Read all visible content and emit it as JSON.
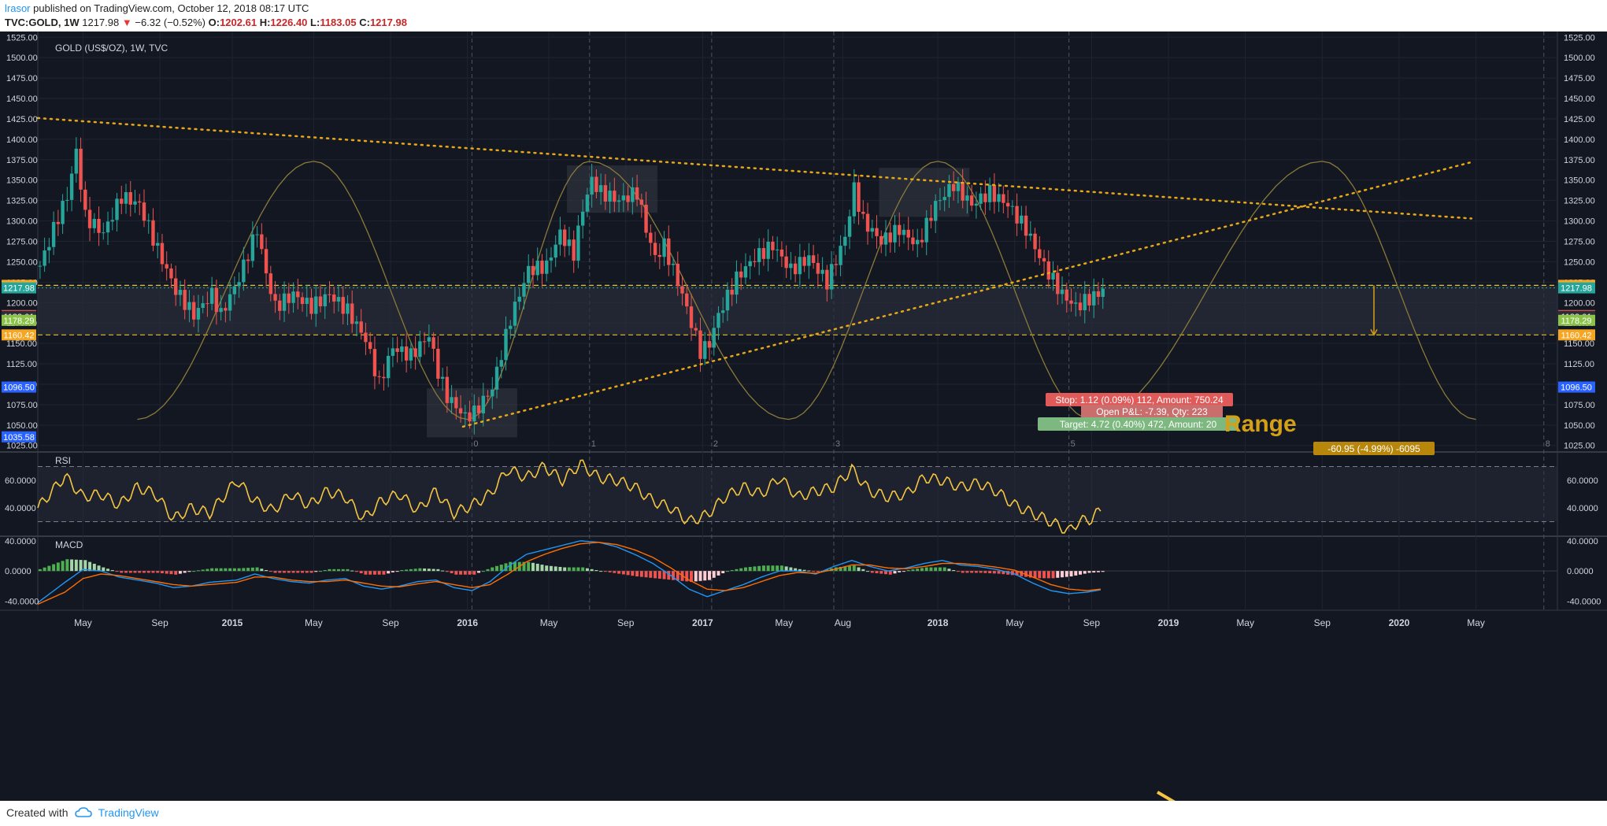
{
  "header": {
    "user": "lrasor",
    "published": "published on TradingView.com, October 12, 2018 08:17 UTC",
    "symbol": "TVC:GOLD, 1W",
    "last": "1217.98",
    "change": "−6.32 (−0.52%)",
    "o_label": "O:",
    "o_value": "1202.61",
    "h_label": "H:",
    "h_value": "1226.40",
    "l_label": "L:",
    "l_value": "1183.05",
    "c_label": "C:",
    "c_value": "1217.98"
  },
  "footer": {
    "created_with": "Created with",
    "brand": "TradingView"
  },
  "colors": {
    "bg": "#131722",
    "bull": "#26a69a",
    "bear": "#ef5350",
    "rsi": "#f4c542",
    "trend": "#e6a817",
    "cycle": "#8a7a3a",
    "macd": "#2196f3",
    "signal": "#ff6d00"
  },
  "chart_data": {
    "type": "candlestick",
    "title": "GOLD (US$/OZ), 1W, TVC",
    "price_axis": {
      "ticks": [
        "1525.00",
        "1500.00",
        "1475.00",
        "1450.00",
        "1425.00",
        "1400.00",
        "1375.00",
        "1350.00",
        "1325.00",
        "1300.00",
        "1275.00",
        "1250.00",
        "1225.00",
        "1200.00",
        "1175.00",
        "1150.00",
        "1125.00",
        "1100.00",
        "1075.00",
        "1050.00",
        "1025.00"
      ],
      "ylim": [
        1018,
        1532
      ]
    },
    "price_labels": [
      {
        "value": 1221.11,
        "text": "1221.11",
        "color": "#f5a623",
        "left": true,
        "right": true
      },
      {
        "value": 1217.98,
        "text": "1217.98",
        "color": "#26a69a",
        "left": true,
        "right": true
      },
      {
        "value": 1184.13,
        "text": "1184.13",
        "color": "#ef5350",
        "left": true,
        "right": true
      },
      {
        "value": 1183.01,
        "text": "1183.01",
        "color": "#2a2e39",
        "left": true,
        "right": true
      },
      {
        "value": 1178.29,
        "text": "1178.29",
        "color": "#8bc34a",
        "left": true,
        "right": true
      },
      {
        "value": 1160.42,
        "text": "1160.42",
        "color": "#f5a623",
        "left": true,
        "right": true
      },
      {
        "value": 1096.5,
        "text": "1096.50",
        "color": "#2962ff",
        "left": true,
        "right": true
      },
      {
        "value": 1035.58,
        "text": "1035.58",
        "color": "#2962ff",
        "left": true,
        "right": false
      }
    ],
    "time_axis": [
      {
        "w": 10,
        "label": "May",
        "bold": false
      },
      {
        "w": 27,
        "label": "Sep",
        "bold": false
      },
      {
        "w": 43,
        "label": "2015",
        "bold": true
      },
      {
        "w": 61,
        "label": "May",
        "bold": false
      },
      {
        "w": 78,
        "label": "Sep",
        "bold": false
      },
      {
        "w": 95,
        "label": "2016",
        "bold": true
      },
      {
        "w": 113,
        "label": "May",
        "bold": false
      },
      {
        "w": 130,
        "label": "Sep",
        "bold": false
      },
      {
        "w": 147,
        "label": "2017",
        "bold": true
      },
      {
        "w": 165,
        "label": "May",
        "bold": false
      },
      {
        "w": 178,
        "label": "Aug",
        "bold": false
      },
      {
        "w": 199,
        "label": "2018",
        "bold": true
      },
      {
        "w": 216,
        "label": "May",
        "bold": false
      },
      {
        "w": 233,
        "label": "Sep",
        "bold": false
      },
      {
        "w": 250,
        "label": "2019",
        "bold": true
      },
      {
        "w": 267,
        "label": "May",
        "bold": false
      },
      {
        "w": 284,
        "label": "Sep",
        "bold": false
      },
      {
        "w": 301,
        "label": "2020",
        "bold": true
      },
      {
        "w": 318,
        "label": "May",
        "bold": false
      }
    ],
    "cycle_markers": [
      {
        "w": 96,
        "label": "0"
      },
      {
        "w": 122,
        "label": "1"
      },
      {
        "w": 149,
        "label": "2"
      },
      {
        "w": 176,
        "label": "3"
      },
      {
        "w": 228,
        "label": "5"
      },
      {
        "w": 333,
        "label": "8"
      }
    ],
    "price_path": [
      [
        0,
        1245
      ],
      [
        4,
        1305
      ],
      [
        6,
        1330
      ],
      [
        8,
        1385
      ],
      [
        10,
        1305
      ],
      [
        14,
        1285
      ],
      [
        18,
        1330
      ],
      [
        22,
        1320
      ],
      [
        26,
        1265
      ],
      [
        30,
        1215
      ],
      [
        34,
        1185
      ],
      [
        38,
        1210
      ],
      [
        40,
        1185
      ],
      [
        44,
        1230
      ],
      [
        48,
        1290
      ],
      [
        50,
        1235
      ],
      [
        52,
        1195
      ],
      [
        56,
        1210
      ],
      [
        60,
        1195
      ],
      [
        64,
        1210
      ],
      [
        68,
        1190
      ],
      [
        72,
        1155
      ],
      [
        75,
        1100
      ],
      [
        78,
        1145
      ],
      [
        82,
        1135
      ],
      [
        86,
        1160
      ],
      [
        88,
        1115
      ],
      [
        90,
        1085
      ],
      [
        94,
        1060
      ],
      [
        96,
        1065
      ],
      [
        100,
        1095
      ],
      [
        104,
        1180
      ],
      [
        108,
        1240
      ],
      [
        112,
        1245
      ],
      [
        115,
        1285
      ],
      [
        118,
        1260
      ],
      [
        120,
        1315
      ],
      [
        122,
        1350
      ],
      [
        124,
        1335
      ],
      [
        128,
        1325
      ],
      [
        132,
        1335
      ],
      [
        134,
        1290
      ],
      [
        136,
        1255
      ],
      [
        138,
        1270
      ],
      [
        142,
        1210
      ],
      [
        146,
        1140
      ],
      [
        148,
        1150
      ],
      [
        150,
        1185
      ],
      [
        154,
        1230
      ],
      [
        158,
        1255
      ],
      [
        162,
        1270
      ],
      [
        166,
        1240
      ],
      [
        170,
        1255
      ],
      [
        174,
        1225
      ],
      [
        178,
        1280
      ],
      [
        180,
        1340
      ],
      [
        182,
        1300
      ],
      [
        186,
        1275
      ],
      [
        190,
        1290
      ],
      [
        194,
        1270
      ],
      [
        198,
        1320
      ],
      [
        202,
        1345
      ],
      [
        206,
        1320
      ],
      [
        210,
        1335
      ],
      [
        214,
        1320
      ],
      [
        218,
        1290
      ],
      [
        222,
        1245
      ],
      [
        226,
        1210
      ],
      [
        229,
        1195
      ],
      [
        232,
        1205
      ],
      [
        234,
        1210
      ],
      [
        235,
        1218
      ]
    ],
    "trendlines": [
      {
        "from": [
          0,
          1426
        ],
        "to": [
          317,
          1303
        ]
      },
      {
        "from": [
          94,
          1048
        ],
        "to": [
          317,
          1372
        ]
      }
    ],
    "cycle_wave": {
      "peaks": [
        61,
        122,
        199,
        284
      ],
      "troughs": [
        22,
        95,
        166,
        233,
        318
      ],
      "high": 1373,
      "low": 1057
    },
    "range_lines": [
      1221.11,
      1160.42
    ],
    "position_box": {
      "from_w": 240,
      "to_w": 317,
      "top": 1221.11,
      "bottom": 1160.42
    },
    "boxes": [
      {
        "from": 86,
        "to": 106,
        "top": 1095,
        "bottom": 1035
      },
      {
        "from": 117,
        "to": 137,
        "top": 1368,
        "bottom": 1310
      },
      {
        "from": 186,
        "to": 206,
        "top": 1365,
        "bottom": 1305
      }
    ],
    "labels": {
      "stop": "Stop: 1.12 (0.09%) 112, Amount: 750.24",
      "open_pl": "Open P&L: -7.39, Qty: 223",
      "target": "Target: 4.72 (0.40%) 472, Amount: 20",
      "range": "Range",
      "measure": "-60.95 (-4.99%) -6095"
    },
    "rsi": {
      "title": "RSI",
      "ticks": [
        "60.0000",
        "40.0000"
      ],
      "ylim": [
        20,
        80
      ],
      "upper": 70,
      "lower": 30,
      "path": [
        [
          0,
          40
        ],
        [
          6,
          63
        ],
        [
          10,
          48
        ],
        [
          14,
          50
        ],
        [
          18,
          42
        ],
        [
          22,
          55
        ],
        [
          26,
          50
        ],
        [
          30,
          32
        ],
        [
          34,
          40
        ],
        [
          38,
          36
        ],
        [
          44,
          60
        ],
        [
          48,
          45
        ],
        [
          52,
          38
        ],
        [
          56,
          50
        ],
        [
          60,
          42
        ],
        [
          64,
          52
        ],
        [
          68,
          48
        ],
        [
          72,
          32
        ],
        [
          76,
          45
        ],
        [
          80,
          50
        ],
        [
          84,
          38
        ],
        [
          88,
          52
        ],
        [
          92,
          36
        ],
        [
          96,
          42
        ],
        [
          100,
          50
        ],
        [
          104,
          68
        ],
        [
          108,
          62
        ],
        [
          112,
          70
        ],
        [
          116,
          60
        ],
        [
          120,
          72
        ],
        [
          124,
          62
        ],
        [
          128,
          60
        ],
        [
          132,
          55
        ],
        [
          136,
          45
        ],
        [
          140,
          40
        ],
        [
          144,
          30
        ],
        [
          148,
          35
        ],
        [
          152,
          48
        ],
        [
          156,
          55
        ],
        [
          160,
          50
        ],
        [
          164,
          62
        ],
        [
          168,
          48
        ],
        [
          172,
          52
        ],
        [
          176,
          55
        ],
        [
          180,
          68
        ],
        [
          184,
          52
        ],
        [
          188,
          48
        ],
        [
          192,
          50
        ],
        [
          196,
          62
        ],
        [
          200,
          60
        ],
        [
          204,
          55
        ],
        [
          208,
          58
        ],
        [
          212,
          52
        ],
        [
          216,
          42
        ],
        [
          220,
          36
        ],
        [
          224,
          30
        ],
        [
          228,
          23
        ],
        [
          230,
          30
        ],
        [
          233,
          32
        ],
        [
          236,
          42
        ]
      ]
    },
    "macd": {
      "title": "MACD",
      "ticks": [
        "40.0000",
        "0.0000",
        "-40.0000"
      ],
      "ylim": [
        -52,
        45
      ],
      "macd_path": [
        [
          0,
          -42
        ],
        [
          6,
          -15
        ],
        [
          10,
          2
        ],
        [
          14,
          0
        ],
        [
          18,
          -8
        ],
        [
          22,
          -12
        ],
        [
          26,
          -16
        ],
        [
          30,
          -22
        ],
        [
          34,
          -20
        ],
        [
          38,
          -15
        ],
        [
          44,
          -12
        ],
        [
          48,
          -4
        ],
        [
          52,
          -10
        ],
        [
          56,
          -14
        ],
        [
          60,
          -16
        ],
        [
          64,
          -12
        ],
        [
          68,
          -10
        ],
        [
          72,
          -20
        ],
        [
          76,
          -24
        ],
        [
          80,
          -20
        ],
        [
          84,
          -14
        ],
        [
          88,
          -12
        ],
        [
          92,
          -22
        ],
        [
          96,
          -26
        ],
        [
          100,
          -14
        ],
        [
          104,
          6
        ],
        [
          108,
          22
        ],
        [
          112,
          28
        ],
        [
          116,
          34
        ],
        [
          120,
          40
        ],
        [
          124,
          38
        ],
        [
          128,
          32
        ],
        [
          132,
          22
        ],
        [
          136,
          10
        ],
        [
          140,
          -6
        ],
        [
          144,
          -24
        ],
        [
          148,
          -34
        ],
        [
          152,
          -26
        ],
        [
          156,
          -18
        ],
        [
          160,
          -8
        ],
        [
          164,
          0
        ],
        [
          168,
          0
        ],
        [
          172,
          -4
        ],
        [
          176,
          6
        ],
        [
          180,
          14
        ],
        [
          184,
          6
        ],
        [
          188,
          0
        ],
        [
          192,
          4
        ],
        [
          196,
          10
        ],
        [
          200,
          14
        ],
        [
          204,
          8
        ],
        [
          208,
          6
        ],
        [
          212,
          2
        ],
        [
          216,
          -4
        ],
        [
          220,
          -16
        ],
        [
          224,
          -26
        ],
        [
          228,
          -30
        ],
        [
          232,
          -28
        ],
        [
          235,
          -25
        ]
      ],
      "signal_path": [
        [
          0,
          -44
        ],
        [
          6,
          -28
        ],
        [
          10,
          -10
        ],
        [
          14,
          -4
        ],
        [
          18,
          -6
        ],
        [
          22,
          -10
        ],
        [
          26,
          -14
        ],
        [
          30,
          -18
        ],
        [
          34,
          -20
        ],
        [
          38,
          -18
        ],
        [
          44,
          -15
        ],
        [
          48,
          -8
        ],
        [
          52,
          -8
        ],
        [
          56,
          -12
        ],
        [
          60,
          -14
        ],
        [
          64,
          -14
        ],
        [
          68,
          -12
        ],
        [
          72,
          -16
        ],
        [
          76,
          -20
        ],
        [
          80,
          -21
        ],
        [
          84,
          -17
        ],
        [
          88,
          -14
        ],
        [
          92,
          -18
        ],
        [
          96,
          -22
        ],
        [
          100,
          -18
        ],
        [
          104,
          -4
        ],
        [
          108,
          12
        ],
        [
          112,
          22
        ],
        [
          116,
          30
        ],
        [
          120,
          36
        ],
        [
          124,
          38
        ],
        [
          128,
          35
        ],
        [
          132,
          28
        ],
        [
          136,
          18
        ],
        [
          140,
          4
        ],
        [
          144,
          -12
        ],
        [
          148,
          -24
        ],
        [
          152,
          -26
        ],
        [
          156,
          -22
        ],
        [
          160,
          -14
        ],
        [
          164,
          -6
        ],
        [
          168,
          -2
        ],
        [
          172,
          -3
        ],
        [
          176,
          2
        ],
        [
          180,
          8
        ],
        [
          184,
          8
        ],
        [
          188,
          4
        ],
        [
          192,
          3
        ],
        [
          196,
          6
        ],
        [
          200,
          10
        ],
        [
          204,
          10
        ],
        [
          208,
          8
        ],
        [
          212,
          5
        ],
        [
          216,
          1
        ],
        [
          220,
          -8
        ],
        [
          224,
          -18
        ],
        [
          228,
          -24
        ],
        [
          232,
          -26
        ],
        [
          235,
          -24
        ]
      ]
    }
  }
}
